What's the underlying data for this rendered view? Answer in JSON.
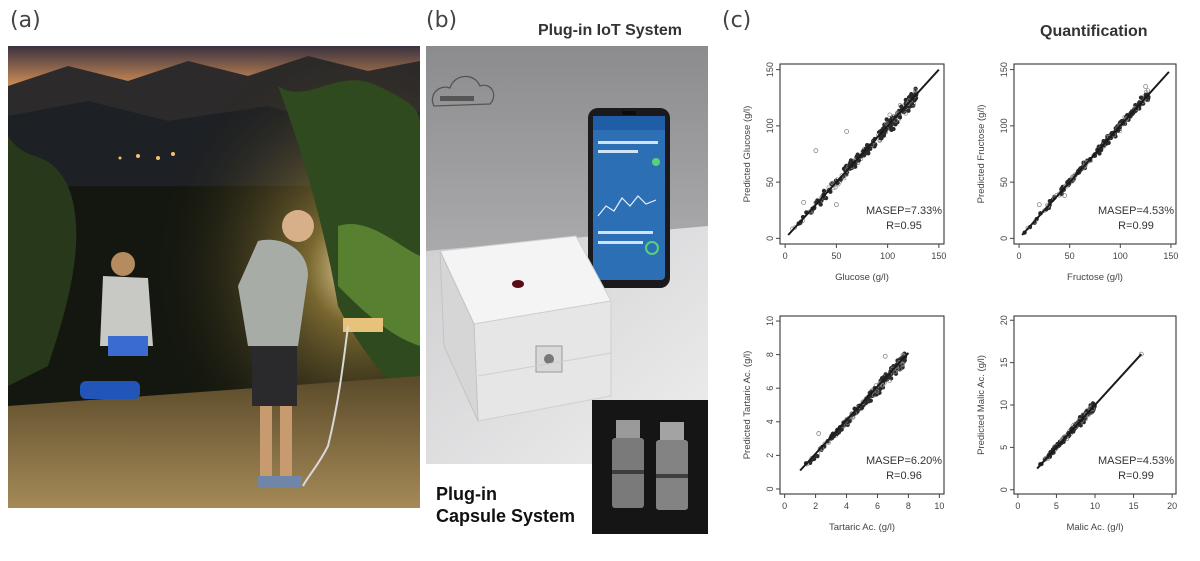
{
  "panels": {
    "a": {
      "letter": "(a)"
    },
    "b": {
      "letter": "(b)",
      "title": "Plug-in IoT System",
      "capsule_caption_line1": "Plug-in",
      "capsule_caption_line2": "Capsule System"
    },
    "c": {
      "letter": "(c)",
      "title": "Quantification"
    }
  },
  "colors": {
    "regression_line": "#1a1a1a",
    "points": "#2a2a2a",
    "open_points": "#888888"
  },
  "chart_data": [
    {
      "type": "scatter",
      "xlabel": "Glucose (g/l)",
      "ylabel": "Predicted Glucose (g/l)",
      "xticks": [
        0,
        50,
        100,
        150
      ],
      "yticks": [
        0,
        50,
        100,
        150
      ],
      "xlim": [
        -5,
        155
      ],
      "ylim": [
        -5,
        155
      ],
      "stats": [
        "MASEP=7.33%",
        "R=0.95"
      ],
      "line": [
        [
          3,
          3
        ],
        [
          150,
          150
        ]
      ],
      "cloud": {
        "from": 3,
        "to": 128,
        "spread": 9,
        "n": 260,
        "outliers": [
          [
            30,
            78
          ],
          [
            60,
            95
          ],
          [
            50,
            30
          ],
          [
            18,
            32
          ],
          [
            120,
            120
          ]
        ]
      }
    },
    {
      "type": "scatter",
      "xlabel": "Fructose (g/l)",
      "ylabel": "Predicted Fructose (g/l)",
      "xticks": [
        0,
        50,
        100,
        150
      ],
      "yticks": [
        0,
        50,
        100,
        150
      ],
      "xlim": [
        -5,
        155
      ],
      "ylim": [
        -5,
        155
      ],
      "stats": [
        "MASEP=4.53%",
        "R=0.99"
      ],
      "line": [
        [
          3,
          3
        ],
        [
          148,
          148
        ]
      ],
      "cloud": {
        "from": 3,
        "to": 128,
        "spread": 5,
        "n": 260,
        "outliers": [
          [
            20,
            30
          ],
          [
            45,
            38
          ],
          [
            125,
            135
          ]
        ]
      }
    },
    {
      "type": "scatter",
      "xlabel": "Tartaric Ac. (g/l)",
      "ylabel": "Predicted Tartaric Ac. (g/l)",
      "xticks": [
        0,
        2,
        4,
        6,
        8,
        10
      ],
      "yticks": [
        0,
        2,
        4,
        6,
        8,
        10
      ],
      "xlim": [
        -0.3,
        10.3
      ],
      "ylim": [
        -0.3,
        10.3
      ],
      "stats": [
        "MASEP=6.20%",
        "R=0.96"
      ],
      "line": [
        [
          1,
          1.1
        ],
        [
          8,
          8.1
        ]
      ],
      "cloud": {
        "from": 1.2,
        "to": 7.8,
        "spread": 0.45,
        "n": 260,
        "outliers": [
          [
            2.2,
            3.3
          ],
          [
            6.5,
            7.9
          ]
        ]
      }
    },
    {
      "type": "scatter",
      "xlabel": "Malic Ac. (g/l)",
      "ylabel": "Predicted Malic Ac. (g/l)",
      "xticks": [
        0,
        5,
        10,
        15,
        20
      ],
      "yticks": [
        0,
        5,
        10,
        15,
        20
      ],
      "xlim": [
        -0.5,
        20.5
      ],
      "ylim": [
        -0.5,
        20.5
      ],
      "stats": [
        "MASEP=4.53%",
        "R=0.99"
      ],
      "line": [
        [
          2.5,
          2.5
        ],
        [
          16,
          16
        ]
      ],
      "cloud": {
        "from": 2.5,
        "to": 10,
        "spread": 0.6,
        "n": 220,
        "outliers": [
          [
            16,
            16
          ]
        ]
      }
    }
  ]
}
